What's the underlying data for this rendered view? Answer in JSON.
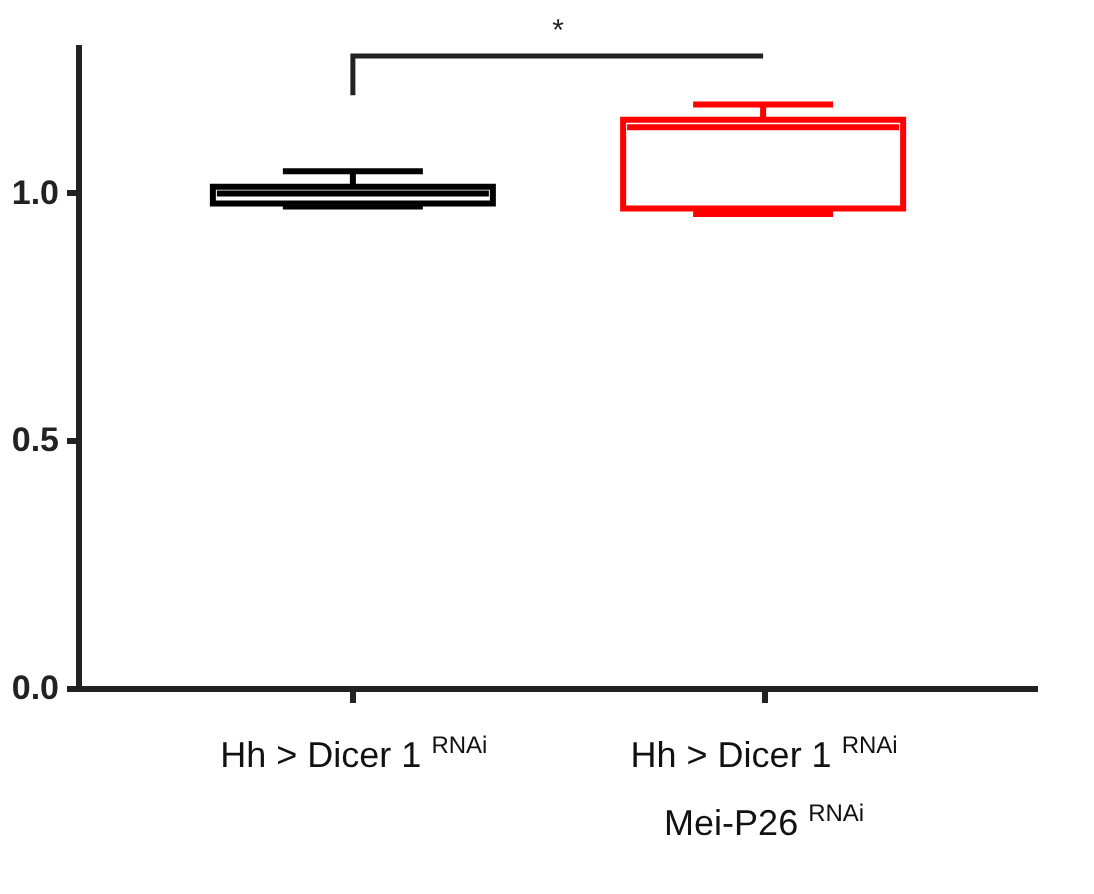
{
  "chart_data": {
    "type": "box",
    "categories": [
      "Hh > Dicer 1 $^{RNAi}$",
      "Hh > Dicer 1 $^{RNAi}$\nMei-P26 $^{RNAi}$"
    ],
    "boxes": [
      {
        "low": 0.972,
        "q1": 0.978,
        "median": 0.998,
        "q3": 1.012,
        "high": 1.043
      },
      {
        "low": 0.957,
        "q1": 0.968,
        "median": 1.132,
        "q3": 1.147,
        "high": 1.178
      }
    ],
    "colors": [
      "#000000",
      "#ff0000"
    ],
    "ylim": [
      0,
      1.3
    ],
    "yticks": [
      {
        "value": 0,
        "label": "0.0"
      },
      {
        "value": 0.5,
        "label": "0.5"
      },
      {
        "value": 1,
        "label": "1.0"
      }
    ],
    "annotations": [
      "*"
    ]
  }
}
